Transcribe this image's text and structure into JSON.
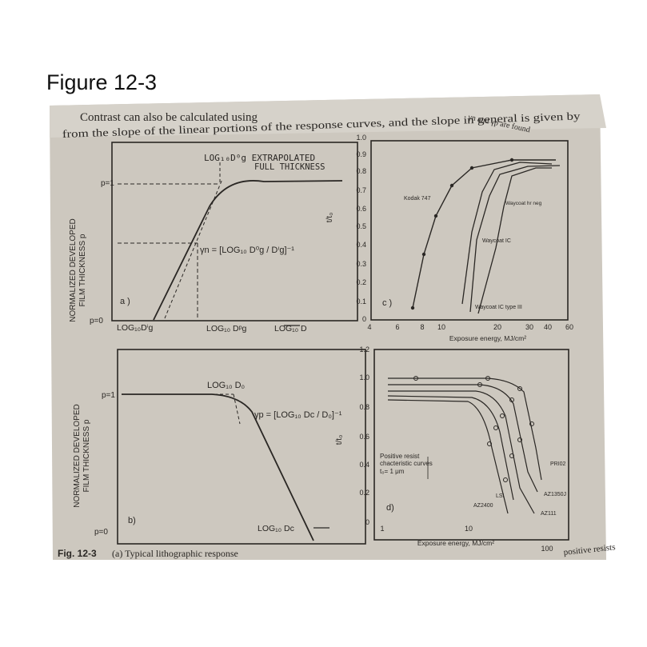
{
  "figure_label": "Figure 12-3",
  "body_text": {
    "line1": "Contrast can also be calculated using",
    "line1_right": "γn and γp are found",
    "line2": "from the slope of the linear portions of the response curves, and the slope in general is given by"
  },
  "caption": {
    "fig": "Fig. 12-3",
    "text": "(a) Typical lithographic response",
    "tail": "positive resists"
  },
  "panel_a": {
    "label": "a )",
    "ylabel_line1": "NORMALIZED DEVELOPED",
    "ylabel_line2": "FILM THICKNESS p",
    "p1_label": "p=1",
    "p0_label": "p=0",
    "annot_top": "LOG₁₀D⁰g  EXTRAPOLATED",
    "annot_top2": "FULL THICKNESS",
    "gamma_formula": "γn = [LOG₁₀ D⁰g / Dⁱg]⁻¹",
    "x_label_1": "LOG₁₀Dⁱg",
    "x_label_2": "LOG₁₀ Dᵖg",
    "x_label_3": "LOG₁₀ D"
  },
  "panel_b": {
    "label": "b)",
    "ylabel_line1": "NORMALIZED DEVELOPED",
    "ylabel_line2": "FILM THICKNESS p",
    "p1_label": "p=1",
    "p0_label": "p=0",
    "annot_top": "LOG₁₀ D₀",
    "gamma_formula": "γp = [LOG₁₀ Dc / D₀]⁻¹",
    "x_label": "LOG₁₀ Dc"
  },
  "panel_c": {
    "label": "c )",
    "ylabel": "t/t₀",
    "yticks": [
      "0",
      "0.1",
      "0.2",
      "0.3",
      "0.4",
      "0.5",
      "0.6",
      "0.7",
      "0.8",
      "0.9",
      "1.0"
    ],
    "xticks": [
      "4",
      "6",
      "8",
      "10",
      "20",
      "30",
      "40",
      "60"
    ],
    "xlabel": "Exposure energy, MJ/cm²",
    "curve_labels": [
      "Kodak 747",
      "Waycoat hr neg",
      "Waycoat IC",
      "Waycoat IC type III"
    ]
  },
  "panel_d": {
    "label": "d)",
    "ylabel": "t/t₀",
    "yticks": [
      "0",
      "0.2",
      "0.4",
      "0.6",
      "0.8",
      "1.0",
      "1.2"
    ],
    "xticks": [
      "1",
      "10",
      "100"
    ],
    "xlabel": "Exposure energy, MJ/cm²",
    "legend_line1": "Positive resist",
    "legend_line2": "chacteristic curves",
    "legend_line3": "t₀= 1 μm",
    "curve_labels": [
      "PRI02",
      "AZ1350J",
      "AZ111",
      "LSI",
      "AZ2400"
    ]
  },
  "colors": {
    "paper": "#cfcac1",
    "ink": "#2a2724",
    "background": "#ffffff"
  }
}
